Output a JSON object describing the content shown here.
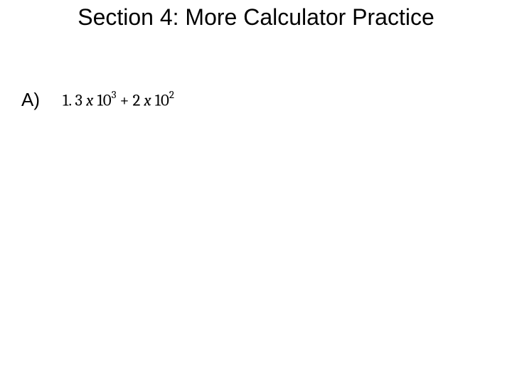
{
  "title": "Section 4: More Calculator Practice",
  "problem": {
    "label": "A)",
    "expression": {
      "coef1": "1. 3",
      "var1": "x",
      "base1": "10",
      "exp1": "3",
      "op": "+",
      "coef2": "2",
      "var2": "x",
      "base2": "10",
      "exp2": "2"
    }
  },
  "styling": {
    "background_color": "#ffffff",
    "text_color": "#000000",
    "title_fontsize": 32,
    "label_fontsize": 26,
    "expression_fontsize": 23,
    "sup_fontsize": 15,
    "title_font": "Arial",
    "expression_font": "Cambria"
  }
}
